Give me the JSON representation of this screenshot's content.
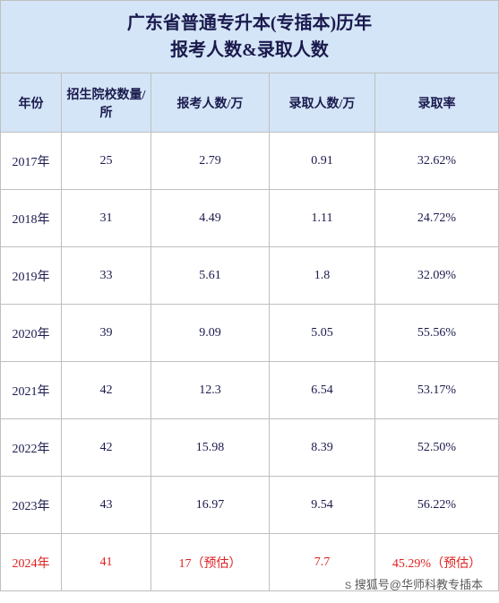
{
  "title": {
    "line1": "广东省普通专升本(专插本)历年",
    "line2": "报考人数&录取人数"
  },
  "columns": {
    "year": "年份",
    "schools": "招生院校数量/所",
    "applicants": "报考人数/万",
    "admitted": "录取人数/万",
    "rate": "录取率"
  },
  "rows": [
    {
      "year": "2017年",
      "schools": "25",
      "applicants": "2.79",
      "admitted": "0.91",
      "rate": "32.62%",
      "highlight": false
    },
    {
      "year": "2018年",
      "schools": "31",
      "applicants": "4.49",
      "admitted": "1.11",
      "rate": "24.72%",
      "highlight": false
    },
    {
      "year": "2019年",
      "schools": "33",
      "applicants": "5.61",
      "admitted": "1.8",
      "rate": "32.09%",
      "highlight": false
    },
    {
      "year": "2020年",
      "schools": "39",
      "applicants": "9.09",
      "admitted": "5.05",
      "rate": "55.56%",
      "highlight": false
    },
    {
      "year": "2021年",
      "schools": "42",
      "applicants": "12.3",
      "admitted": "6.54",
      "rate": "53.17%",
      "highlight": false
    },
    {
      "year": "2022年",
      "schools": "42",
      "applicants": "15.98",
      "admitted": "8.39",
      "rate": "52.50%",
      "highlight": false
    },
    {
      "year": "2023年",
      "schools": "43",
      "applicants": "16.97",
      "admitted": "9.54",
      "rate": "56.22%",
      "highlight": false
    },
    {
      "year": "2024年",
      "schools": "41",
      "applicants": "17（预估）",
      "admitted": "7.7",
      "rate": "45.29%（预估）",
      "highlight": true
    }
  ],
  "watermark": "搜狐号@华师科教专插本",
  "colors": {
    "header_bg": "#d4e5f7",
    "border": "#bfbfbf",
    "text": "#1a1a4d",
    "highlight_text": "#e02020",
    "background": "#ffffff"
  }
}
